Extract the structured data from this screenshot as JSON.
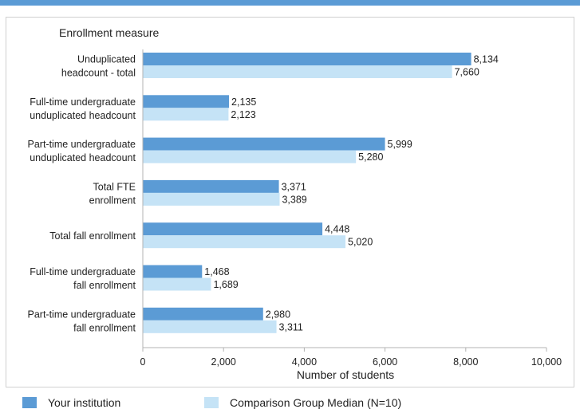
{
  "colors": {
    "primary": "#5b9bd5",
    "comparison": "#c5e3f6",
    "top_rule": "#5b9bd5",
    "axis": "#b3b3b3",
    "text": "#222222"
  },
  "legend": {
    "items": [
      {
        "label": "Your institution"
      },
      {
        "label": "Comparison Group Median (N=10)"
      }
    ]
  },
  "chart_data": {
    "type": "bar",
    "orientation": "horizontal",
    "category_axis_title": "Enrollment measure",
    "xlabel": "Number of students",
    "xlim": [
      0,
      10000
    ],
    "x_ticks": [
      "0",
      "2,000",
      "4,000",
      "6,000",
      "8,000",
      "10,000"
    ],
    "categories": [
      [
        "Unduplicated",
        "headcount - total"
      ],
      [
        "Full-time undergraduate",
        "unduplicated headcount"
      ],
      [
        "Part-time undergraduate",
        "unduplicated headcount"
      ],
      [
        "Total FTE",
        "enrollment"
      ],
      [
        "Total fall enrollment"
      ],
      [
        "Full-time undergraduate",
        "fall enrollment"
      ],
      [
        "Part-time undergraduate",
        "fall enrollment"
      ]
    ],
    "series": [
      {
        "name": "Your institution",
        "values": [
          8134,
          2135,
          5999,
          3371,
          4448,
          1468,
          2980
        ],
        "labels": [
          "8,134",
          "2,135",
          "5,999",
          "3,371",
          "4,448",
          "1,468",
          "2,980"
        ]
      },
      {
        "name": "Comparison Group Median (N=10)",
        "values": [
          7660,
          2123,
          5280,
          3389,
          5020,
          1689,
          3311
        ],
        "labels": [
          "7,660",
          "2,123",
          "5,280",
          "3,389",
          "5,020",
          "1,689",
          "3,311"
        ]
      }
    ],
    "legend_position": "bottom",
    "grid": false
  }
}
